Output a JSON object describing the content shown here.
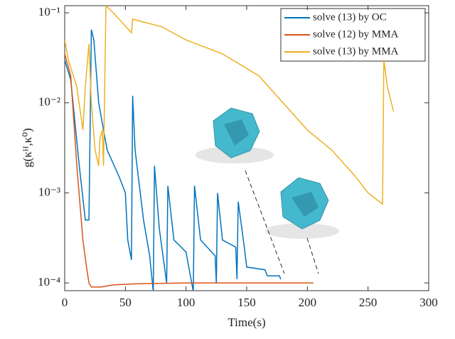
{
  "chart_data": {
    "type": "line",
    "x_label": "Time(s)",
    "y_label": "g(κᴴ,κ⁰)",
    "log_y": true,
    "legend_position": "upper right",
    "xlim": [
      0,
      300
    ],
    "xticks": [
      0,
      50,
      100,
      150,
      200,
      250,
      300
    ],
    "ylim": [
      8.2e-05,
      0.12
    ],
    "yticks": [
      {
        "value": 0.0001,
        "label": "10⁻⁴"
      },
      {
        "value": 0.001,
        "label": "10⁻³"
      },
      {
        "value": 0.01,
        "label": "10⁻²"
      },
      {
        "value": 0.1,
        "label": "10⁻¹"
      }
    ],
    "series": [
      {
        "name": "solve (13) by OC",
        "color": "#0072bd",
        "x": [
          0,
          5,
          12,
          17,
          20,
          22,
          24,
          28,
          35,
          45,
          50,
          52,
          55,
          56,
          58,
          65,
          70,
          73,
          74,
          78,
          84,
          85,
          90,
          100,
          106,
          107,
          112,
          124,
          125,
          126,
          130,
          141,
          142,
          143,
          148,
          150,
          165,
          167,
          177,
          178
        ],
        "values": [
          0.03,
          0.018,
          0.002,
          0.0005,
          0.0005,
          0.065,
          0.05,
          0.01,
          0.003,
          0.0015,
          0.001,
          0.0003,
          0.00018,
          0.012,
          0.003,
          0.0005,
          0.0002,
          8e-05,
          0.002,
          0.0004,
          0.0001,
          0.0012,
          0.0003,
          0.00022,
          8e-05,
          0.0012,
          0.0003,
          0.0002,
          0.0001,
          0.001,
          0.0003,
          0.00025,
          0.00011,
          0.0008,
          0.00025,
          0.00015,
          0.00014,
          0.00012,
          0.00012,
          0.00011
        ]
      },
      {
        "name": "solve (12) by MMA",
        "color": "#d95319",
        "x": [
          0,
          5,
          10,
          15,
          18,
          20,
          22,
          30,
          40,
          60,
          100,
          205
        ],
        "values": [
          0.035,
          0.02,
          0.002,
          0.0003,
          0.00015,
          0.0001,
          9e-05,
          9e-05,
          9.5e-05,
          9.8e-05,
          0.0001,
          0.0001
        ]
      },
      {
        "name": "solve (13) by MMA",
        "color": "#edb120",
        "x": [
          0,
          3,
          10,
          15,
          17,
          20,
          22,
          25,
          28,
          29,
          31,
          32,
          34,
          40,
          55,
          56,
          80,
          100,
          130,
          160,
          180,
          200,
          220,
          240,
          250,
          262,
          263,
          266,
          271
        ],
        "values": [
          0.05,
          0.03,
          0.015,
          0.005,
          0.015,
          0.045,
          0.01,
          0.003,
          0.002,
          0.004,
          0.005,
          0.002,
          0.12,
          0.1,
          0.06,
          0.085,
          0.07,
          0.05,
          0.035,
          0.02,
          0.01,
          0.005,
          0.003,
          0.0015,
          0.001,
          0.00075,
          0.03,
          0.015,
          0.008
        ]
      }
    ]
  }
}
